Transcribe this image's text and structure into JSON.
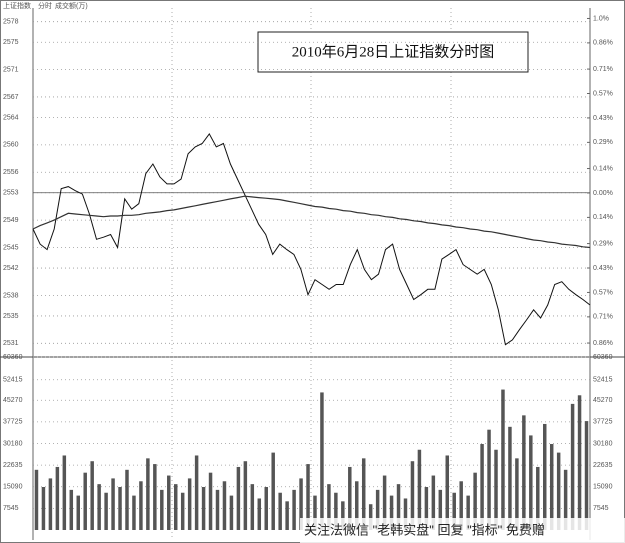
{
  "chart_data": [
    {
      "type": "line",
      "title": "2010年6月28日上证指数分时图",
      "header_labels": [
        "上证指数",
        "分时",
        "成交额(万)"
      ],
      "watermark": "关注法微信 \"老韩实盘\" 回复 \"指标\" 免费赠",
      "ylim": [
        2529,
        2580
      ],
      "yticks": [
        2578,
        2575,
        2571,
        2567,
        2564,
        2560,
        2556,
        2553,
        2549,
        2545,
        2542,
        2538,
        2535,
        2531
      ],
      "y2lim": [
        -0.94,
        1.06
      ],
      "y2ticks": [
        {
          "value": 1.0,
          "label": "1.0%"
        },
        {
          "value": 0.86,
          "label": "0.86%"
        },
        {
          "value": 0.71,
          "label": "0.71%"
        },
        {
          "value": 0.57,
          "label": "0.57%"
        },
        {
          "value": 0.43,
          "label": "0.43%"
        },
        {
          "value": 0.29,
          "label": "0.29%"
        },
        {
          "value": 0.14,
          "label": "0.14%"
        },
        {
          "value": 0,
          "label": "0.00%"
        },
        {
          "value": -0.14,
          "label": "0.14%"
        },
        {
          "value": -0.29,
          "label": "0.29%"
        },
        {
          "value": -0.43,
          "label": "0.43%"
        },
        {
          "value": -0.57,
          "label": "0.57%"
        },
        {
          "value": -0.71,
          "label": "0.71%"
        },
        {
          "value": -0.86,
          "label": "0.86%"
        }
      ],
      "reference": 2553,
      "grid": true,
      "series": [
        {
          "color": "#111111",
          "values": [
            2547.7,
            2545.5,
            2544.7,
            2547.7,
            2553.6,
            2553.9,
            2553.3,
            2552.8,
            2549.9,
            2546.2,
            2546.5,
            2546.9,
            2545.0,
            2552.1,
            2550.6,
            2551.4,
            2555.8,
            2557.2,
            2555.3,
            2554.3,
            2554.3,
            2555.0,
            2558.7,
            2559.7,
            2560.2,
            2561.6,
            2559.7,
            2560.2,
            2557.2,
            2555.0,
            2552.8,
            2550.6,
            2548.4,
            2546.9,
            2544.0,
            2545.5,
            2544.7,
            2544.0,
            2541.8,
            2538.1,
            2540.3,
            2539.6,
            2538.9,
            2539.6,
            2539.6,
            2542.5,
            2544.7,
            2541.8,
            2540.3,
            2541.1,
            2544.7,
            2545.5,
            2541.8,
            2539.6,
            2537.4,
            2538.1,
            2538.9,
            2538.9,
            2543.3,
            2544.0,
            2544.7,
            2542.5,
            2541.8,
            2541.1,
            2541.8,
            2539.6,
            2535.9,
            2530.8,
            2531.5,
            2533.0,
            2534.4,
            2535.9,
            2534.7,
            2536.6,
            2539.6,
            2540.0,
            2538.9,
            2538.1,
            2537.4,
            2536.6
          ]
        },
        {
          "color": "#333333",
          "values": [
            2547.7,
            2548.2,
            2548.6,
            2549.0,
            2549.5,
            2550.0,
            2549.9,
            2549.8,
            2549.7,
            2549.6,
            2549.5,
            2549.6,
            2549.6,
            2549.7,
            2549.7,
            2549.8,
            2550.0,
            2550.1,
            2550.2,
            2550.4,
            2550.5,
            2550.7,
            2550.9,
            2551.1,
            2551.3,
            2551.5,
            2551.7,
            2551.9,
            2552.1,
            2552.3,
            2552.5,
            2552.4,
            2552.3,
            2552.2,
            2552.1,
            2552.0,
            2551.8,
            2551.6,
            2551.4,
            2551.2,
            2551.0,
            2550.9,
            2550.7,
            2550.6,
            2550.4,
            2550.3,
            2550.1,
            2550.0,
            2549.8,
            2549.7,
            2549.5,
            2549.4,
            2549.2,
            2549.1,
            2548.9,
            2548.8,
            2548.6,
            2548.5,
            2548.3,
            2548.2,
            2548.0,
            2547.9,
            2547.7,
            2547.6,
            2547.4,
            2547.3,
            2547.1,
            2546.9,
            2546.7,
            2546.5,
            2546.3,
            2546.1,
            2546.0,
            2545.8,
            2545.7,
            2545.5,
            2545.4,
            2545.3,
            2545.1,
            2545.0
          ]
        }
      ]
    },
    {
      "type": "bar",
      "color": "#555555",
      "ylim": [
        0,
        60360
      ],
      "yticks": [
        60360,
        52415,
        45270,
        37725,
        30180,
        22635,
        15090,
        7545
      ],
      "values": [
        21000,
        15000,
        18000,
        22000,
        26000,
        14000,
        12000,
        20000,
        24000,
        16000,
        13000,
        18000,
        15000,
        21000,
        12000,
        17000,
        25000,
        23000,
        14000,
        19000,
        16000,
        13000,
        18000,
        26000,
        15000,
        20000,
        14000,
        17000,
        12000,
        22000,
        24000,
        16000,
        11000,
        15000,
        27000,
        13000,
        10000,
        14000,
        18000,
        23000,
        12000,
        48000,
        16000,
        13000,
        10000,
        22000,
        17000,
        25000,
        9000,
        14000,
        19000,
        12000,
        16000,
        11000,
        24000,
        28000,
        15000,
        19000,
        14000,
        26000,
        13000,
        17000,
        12000,
        20000,
        30000,
        35000,
        28000,
        49000,
        36000,
        25000,
        40000,
        33000,
        22000,
        37000,
        30000,
        27000,
        21000,
        44000,
        47000,
        38000
      ]
    }
  ]
}
